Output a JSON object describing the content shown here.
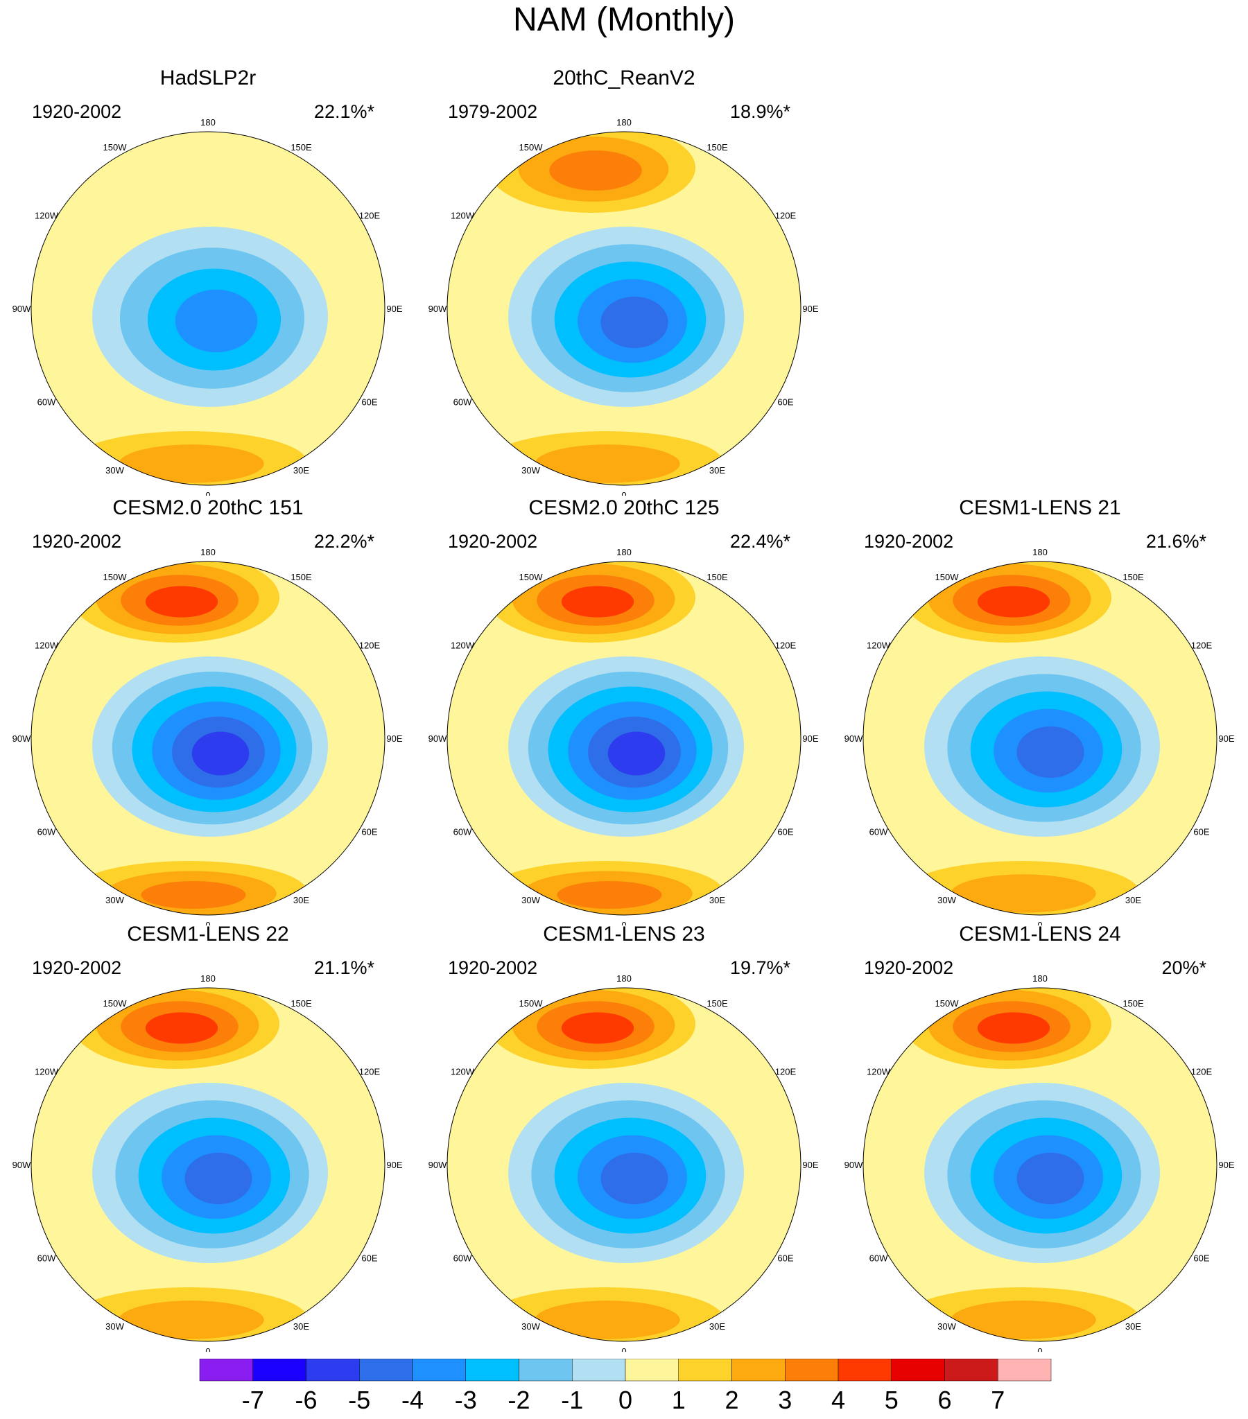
{
  "title": "NAM (Monthly)",
  "chart_data": [
    {
      "type": "heatmap",
      "title": "HadSLP2r",
      "period": "1920-2002",
      "variance": "22.1%*",
      "lobes": [
        {
          "region": "arctic",
          "value": -4
        },
        {
          "region": "atlantic",
          "value": 2
        }
      ]
    },
    {
      "type": "heatmap",
      "title": "20thC_ReanV2",
      "period": "1979-2002",
      "variance": "18.9%*",
      "lobes": [
        {
          "region": "arctic",
          "value": -5
        },
        {
          "region": "pacific",
          "value": 3
        },
        {
          "region": "atlantic",
          "value": 2
        }
      ]
    },
    {
      "type": "heatmap",
      "title": "CESM2.0 20thC 151",
      "period": "1920-2002",
      "variance": "22.2%*",
      "lobes": [
        {
          "region": "arctic",
          "value": -6
        },
        {
          "region": "pacific",
          "value": 4
        },
        {
          "region": "atlantic",
          "value": 3
        }
      ]
    },
    {
      "type": "heatmap",
      "title": "CESM2.0 20thC 125",
      "period": "1920-2002",
      "variance": "22.4%*",
      "lobes": [
        {
          "region": "arctic",
          "value": -6
        },
        {
          "region": "pacific",
          "value": 4
        },
        {
          "region": "atlantic",
          "value": 3
        }
      ]
    },
    {
      "type": "heatmap",
      "title": "CESM1-LENS 21",
      "period": "1920-2002",
      "variance": "21.6%*",
      "lobes": [
        {
          "region": "arctic",
          "value": -5
        },
        {
          "region": "pacific",
          "value": 4
        },
        {
          "region": "atlantic",
          "value": 2
        }
      ]
    },
    {
      "type": "heatmap",
      "title": "CESM1-LENS 22",
      "period": "1920-2002",
      "variance": "21.1%*",
      "lobes": [
        {
          "region": "arctic",
          "value": -5
        },
        {
          "region": "pacific",
          "value": 4
        },
        {
          "region": "atlantic",
          "value": 2
        }
      ]
    },
    {
      "type": "heatmap",
      "title": "CESM1-LENS 23",
      "period": "1920-2002",
      "variance": "19.7%*",
      "lobes": [
        {
          "region": "arctic",
          "value": -5
        },
        {
          "region": "pacific",
          "value": 4
        },
        {
          "region": "atlantic",
          "value": 2
        }
      ]
    },
    {
      "type": "heatmap",
      "title": "CESM1-LENS 24",
      "period": "1920-2002",
      "variance": "20%*",
      "lobes": [
        {
          "region": "arctic",
          "value": -5
        },
        {
          "region": "pacific",
          "value": 4
        },
        {
          "region": "atlantic",
          "value": 2
        }
      ]
    }
  ],
  "colorbar": {
    "ticks": [
      "-7",
      "-6",
      "-5",
      "-4",
      "-3",
      "-2",
      "-1",
      "0",
      "1",
      "2",
      "3",
      "4",
      "5",
      "6",
      "7"
    ],
    "colors": [
      "#8a1ef0",
      "#1a00ff",
      "#2e3cf0",
      "#2e6ee8",
      "#1e90ff",
      "#00bfff",
      "#6ec6f0",
      "#b3dff2",
      "#fff59a",
      "#fdd22a",
      "#fcaa10",
      "#fc7f0a",
      "#ff3a00",
      "#e60000",
      "#cc1a1a",
      "#ffb4b4"
    ]
  },
  "longitude_labels": [
    "180",
    "150E",
    "120E",
    "90E",
    "60E",
    "30E",
    "0",
    "30W",
    "60W",
    "90W",
    "120W",
    "150W"
  ]
}
